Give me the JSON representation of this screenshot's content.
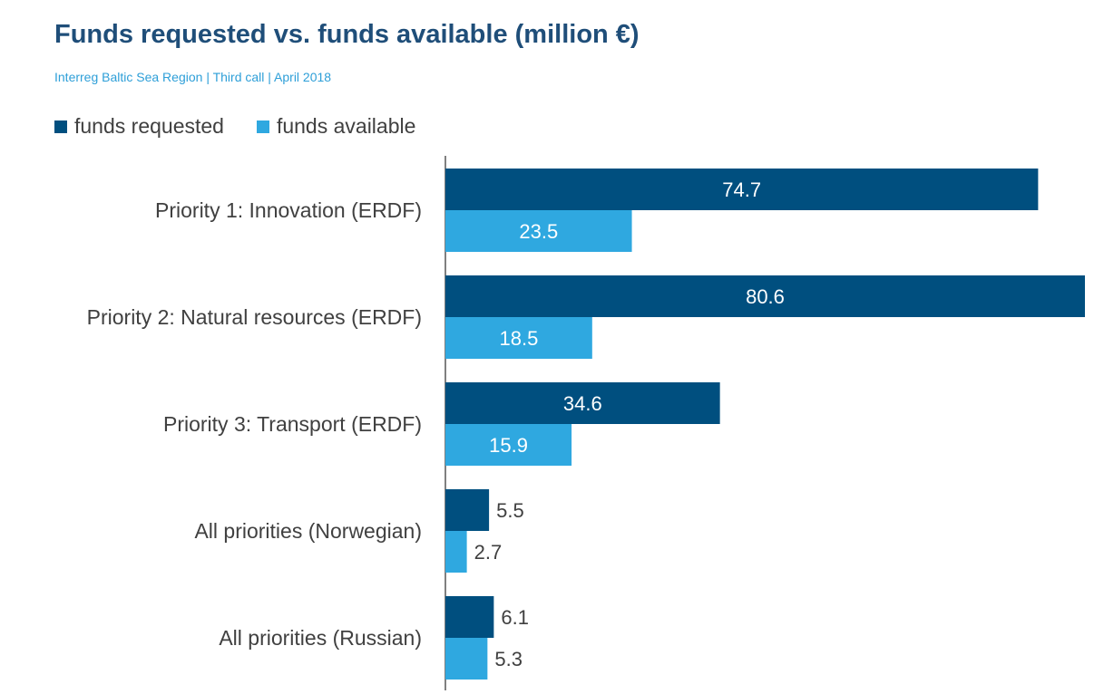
{
  "header": {
    "title": "Funds requested vs. funds available (million €)",
    "subtitle": "Interreg Baltic Sea Region  |  Third call  |  April 2018"
  },
  "colors": {
    "requested": "#004f7f",
    "available": "#2fa8e0",
    "axis": "#000000",
    "title": "#1f4e79",
    "subtitle": "#2e9fd8",
    "text": "#404040"
  },
  "chart_data": {
    "type": "bar",
    "orientation": "horizontal",
    "title": "Funds requested vs. funds available (million €)",
    "subtitle": "Interreg Baltic Sea Region  |  Third call  |  April 2018",
    "categories": [
      "Priority 1: Innovation (ERDF)",
      "Priority 2: Natural resources (ERDF)",
      "Priority 3: Transport (ERDF)",
      "All priorities (Norwegian)",
      "All priorities (Russian)"
    ],
    "series": [
      {
        "name": "funds requested",
        "values": [
          74.7,
          80.6,
          34.6,
          5.5,
          6.1
        ]
      },
      {
        "name": "funds available",
        "values": [
          23.5,
          18.5,
          15.9,
          2.7,
          5.3
        ]
      }
    ],
    "xlim": [
      0,
      80.6
    ],
    "legend": "top-left",
    "grid": false,
    "data_labels": true
  }
}
